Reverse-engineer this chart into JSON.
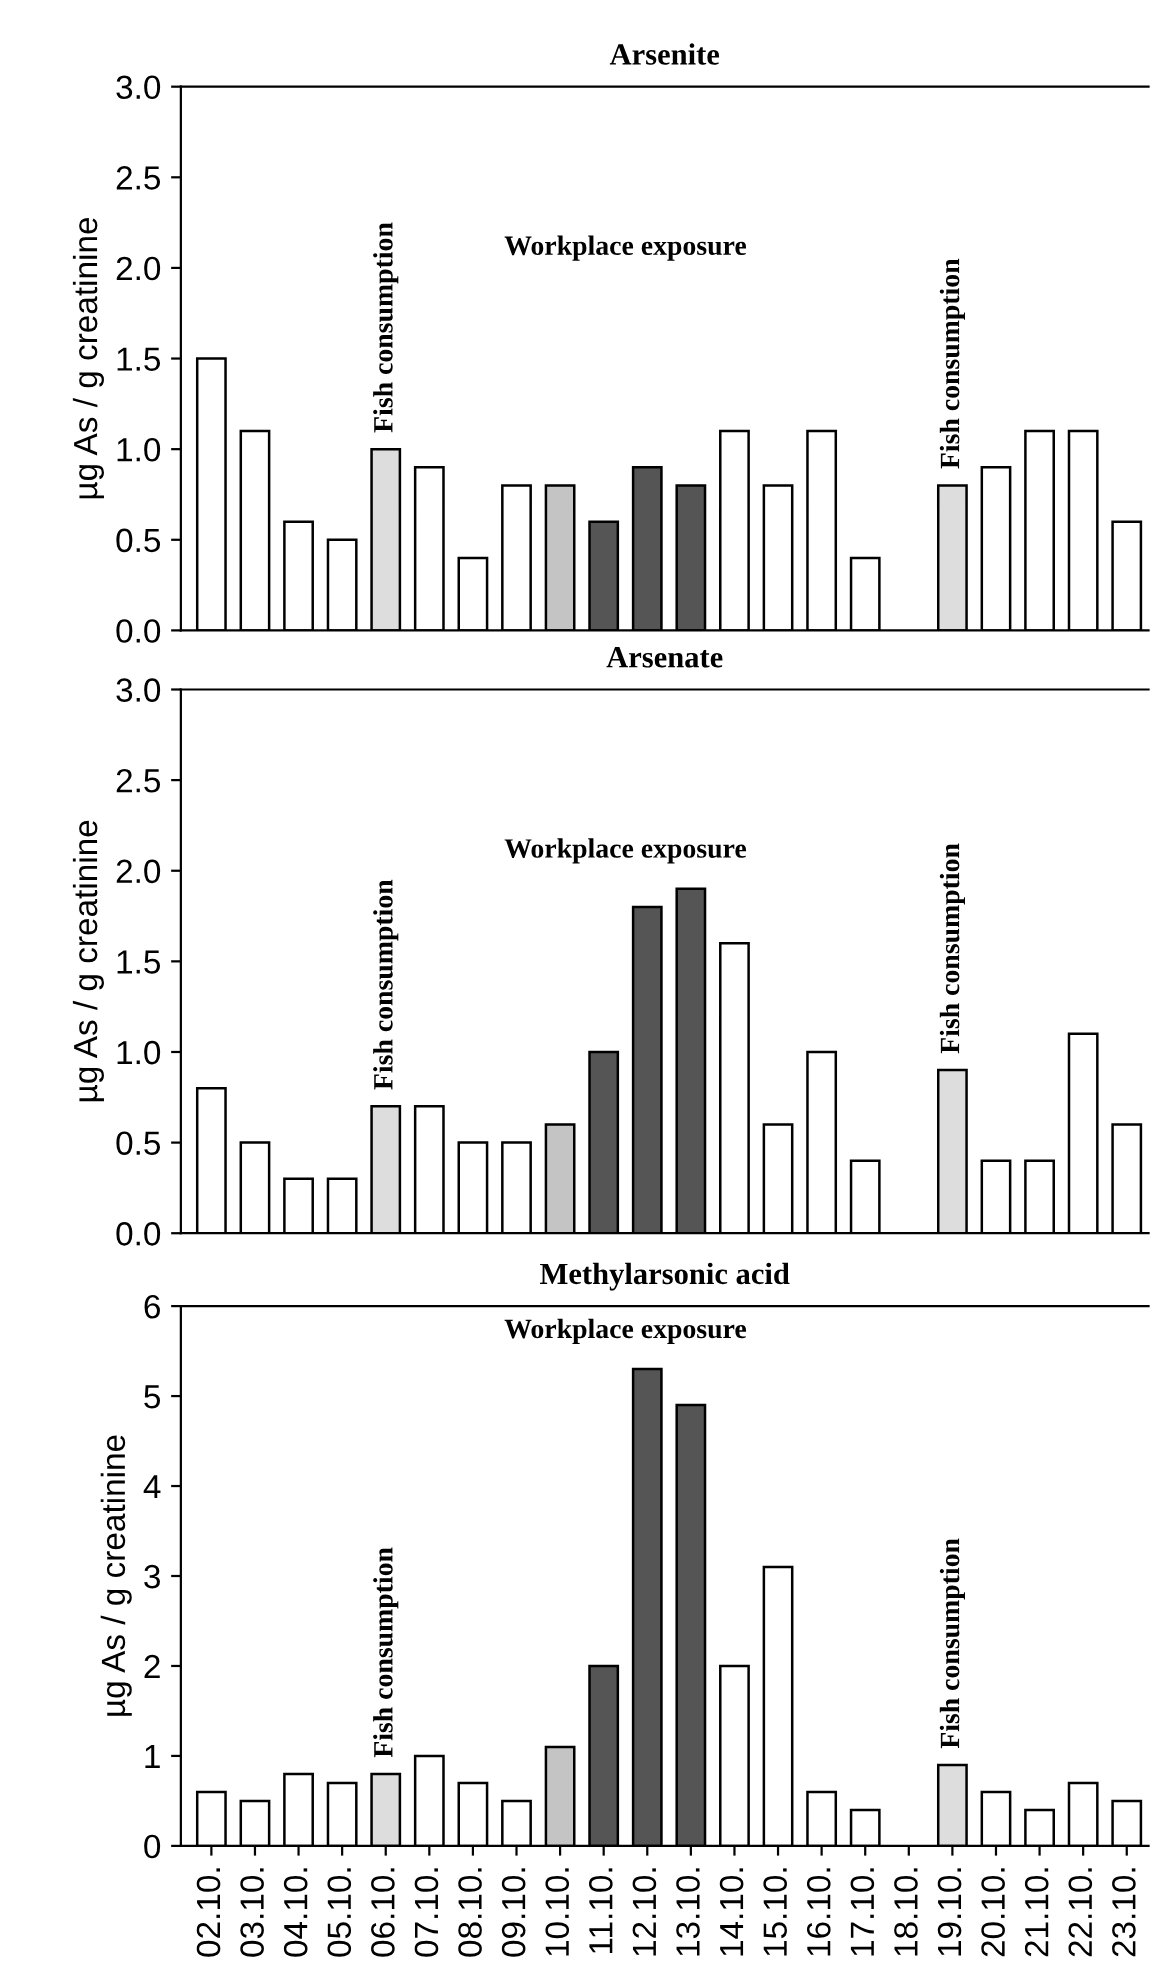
{
  "chart_data": [
    {
      "type": "bar",
      "title": "Arsenite",
      "ylabel": "µg As / g creatinine",
      "categories": [
        "02.10.",
        "03.10.",
        "04.10.",
        "05.10.",
        "06.10.",
        "07.10.",
        "08.10.",
        "09.10.",
        "10.10.",
        "11.10.",
        "12.10.",
        "13.10.",
        "14.10.",
        "15.10.",
        "16.10.",
        "17.10.",
        "18.10.",
        "19.10.",
        "20.10.",
        "21.10.",
        "22.10.",
        "23.10."
      ],
      "values": [
        1.5,
        1.1,
        0.6,
        0.5,
        1.0,
        0.9,
        0.4,
        0.8,
        0.8,
        0.6,
        0.9,
        0.8,
        1.1,
        0.8,
        1.1,
        0.4,
        null,
        0.8,
        0.9,
        1.1,
        1.1,
        0.6
      ],
      "colors": [
        "#ffffff",
        "#ffffff",
        "#ffffff",
        "#ffffff",
        "#dddddd",
        "#ffffff",
        "#ffffff",
        "#ffffff",
        "#c4c4c4",
        "#555555",
        "#555555",
        "#555555",
        "#ffffff",
        "#ffffff",
        "#ffffff",
        "#ffffff",
        "#ffffff",
        "#dddddd",
        "#ffffff",
        "#ffffff",
        "#ffffff",
        "#ffffff"
      ],
      "ylim": [
        0,
        3
      ],
      "yticks": [
        {
          "value": 0,
          "label": "0.0"
        },
        {
          "value": 0.5,
          "label": "0.5"
        },
        {
          "value": 1,
          "label": "1.0"
        },
        {
          "value": 1.5,
          "label": "1.5"
        },
        {
          "value": 2,
          "label": "2.0"
        },
        {
          "value": 2.5,
          "label": "2.5"
        },
        {
          "value": 3,
          "label": "3.0"
        }
      ],
      "tick_labels": "y",
      "grid": false,
      "legend": false,
      "annotations": [
        "Fish consumption",
        "Workplace exposure",
        "Fish consumption"
      ]
    },
    {
      "type": "bar",
      "title": "Arsenate",
      "ylabel": "µg As / g creatinine",
      "categories": [
        "02.10.",
        "03.10.",
        "04.10.",
        "05.10.",
        "06.10.",
        "07.10.",
        "08.10.",
        "09.10.",
        "10.10.",
        "11.10.",
        "12.10.",
        "13.10.",
        "14.10.",
        "15.10.",
        "16.10.",
        "17.10.",
        "18.10.",
        "19.10.",
        "20.10.",
        "21.10.",
        "22.10.",
        "23.10."
      ],
      "values": [
        0.8,
        0.5,
        0.3,
        0.3,
        0.7,
        0.7,
        0.5,
        0.5,
        0.6,
        1.0,
        1.8,
        1.9,
        1.6,
        0.6,
        1.0,
        0.4,
        null,
        0.9,
        0.4,
        0.4,
        1.1,
        0.6
      ],
      "colors": [
        "#ffffff",
        "#ffffff",
        "#ffffff",
        "#ffffff",
        "#dddddd",
        "#ffffff",
        "#ffffff",
        "#ffffff",
        "#c4c4c4",
        "#555555",
        "#555555",
        "#555555",
        "#ffffff",
        "#ffffff",
        "#ffffff",
        "#ffffff",
        "#ffffff",
        "#dddddd",
        "#ffffff",
        "#ffffff",
        "#ffffff",
        "#ffffff"
      ],
      "ylim": [
        0,
        3
      ],
      "yticks": [
        {
          "value": 0,
          "label": "0.0"
        },
        {
          "value": 0.5,
          "label": "0.5"
        },
        {
          "value": 1,
          "label": "1.0"
        },
        {
          "value": 1.5,
          "label": "1.5"
        },
        {
          "value": 2,
          "label": "2.0"
        },
        {
          "value": 2.5,
          "label": "2.5"
        },
        {
          "value": 3,
          "label": "3.0"
        }
      ],
      "tick_labels": "y",
      "grid": false,
      "legend": false,
      "annotations": [
        "Fish consumption",
        "Workplace exposure",
        "Fish consumption"
      ]
    },
    {
      "type": "bar",
      "title": "Methylarsonic acid",
      "ylabel": "µg As / g creatinine",
      "categories": [
        "02.10.",
        "03.10.",
        "04.10.",
        "05.10.",
        "06.10.",
        "07.10.",
        "08.10.",
        "09.10.",
        "10.10.",
        "11.10.",
        "12.10.",
        "13.10.",
        "14.10.",
        "15.10.",
        "16.10.",
        "17.10.",
        "18.10.",
        "19.10.",
        "20.10.",
        "21.10.",
        "22.10.",
        "23.10."
      ],
      "values": [
        0.6,
        0.5,
        0.8,
        0.7,
        0.8,
        1.0,
        0.7,
        0.5,
        1.1,
        2.0,
        5.3,
        4.9,
        2.0,
        3.1,
        0.6,
        0.4,
        null,
        0.9,
        0.6,
        0.4,
        0.7,
        0.5
      ],
      "colors": [
        "#ffffff",
        "#ffffff",
        "#ffffff",
        "#ffffff",
        "#dddddd",
        "#ffffff",
        "#ffffff",
        "#ffffff",
        "#c4c4c4",
        "#555555",
        "#555555",
        "#555555",
        "#ffffff",
        "#ffffff",
        "#ffffff",
        "#ffffff",
        "#ffffff",
        "#dddddd",
        "#ffffff",
        "#ffffff",
        "#ffffff",
        "#ffffff"
      ],
      "ylim": [
        0,
        6
      ],
      "yticks": [
        0,
        1,
        2,
        3,
        4,
        5,
        6
      ],
      "grid": false,
      "legend": false,
      "annotations": [
        "Fish consumption",
        "Workplace exposure",
        "Fish consumption"
      ]
    }
  ]
}
